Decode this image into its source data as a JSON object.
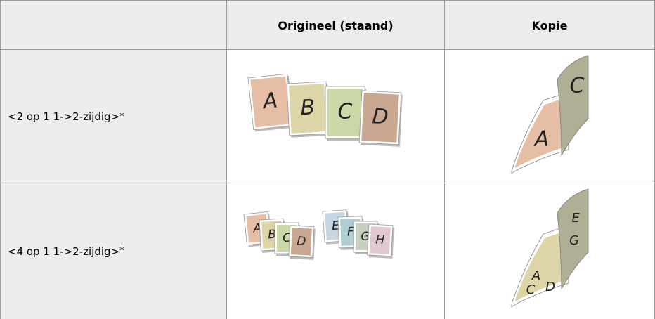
{
  "table": {
    "header": {
      "original": "Origineel (staand)",
      "copy": "Kopie"
    },
    "rows": [
      {
        "label": "<2 op 1 1->2-zijdig>",
        "mark": "*",
        "original": [
          "A",
          "B",
          "C",
          "D"
        ],
        "copy": [
          "A",
          "C"
        ]
      },
      {
        "label": "<4 op 1 1->2-zijdig>",
        "mark": "*",
        "original": [
          "A",
          "B",
          "C",
          "D",
          "E",
          "F",
          "G",
          "H"
        ],
        "copy": [
          "A",
          "C",
          "D",
          "E",
          "G"
        ]
      }
    ]
  }
}
